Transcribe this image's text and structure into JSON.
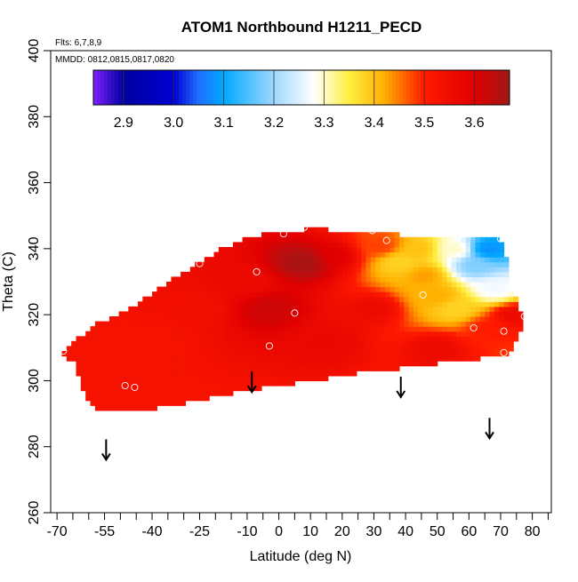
{
  "chart_data": {
    "type": "heatmap",
    "title": "ATOM1 Northbound H1211_PECD",
    "subtitle_flights": "Flts: 6,7,8,9",
    "subtitle_dates": "MMDD: 0812,0815,0817,0820",
    "xlabel": "Latitude (deg N)",
    "ylabel": "Theta (C)",
    "xlim": [
      -72,
      86
    ],
    "ylim": [
      260,
      400
    ],
    "x_major_ticks": [
      -70,
      -55,
      -40,
      -25,
      -10,
      0,
      10,
      20,
      30,
      40,
      50,
      60,
      70,
      80
    ],
    "x_tick_labels": [
      "-70",
      "-55",
      "-40",
      "-25",
      "-10",
      "0",
      "10",
      "20",
      "30",
      "40",
      "50",
      "60",
      "70",
      "80"
    ],
    "x_minor_ticks": [
      -65,
      -60,
      -50,
      -45,
      -35,
      -30,
      -20,
      -15,
      -5,
      5,
      15,
      25,
      35,
      45,
      55,
      65,
      75,
      85
    ],
    "y_ticks": [
      260,
      280,
      300,
      320,
      340,
      360,
      380,
      400
    ],
    "y_tick_labels": [
      "260",
      "280",
      "300",
      "320",
      "340",
      "360",
      "380",
      "400"
    ],
    "colorbar": {
      "min": 2.84,
      "max": 3.67,
      "ticks": [
        2.9,
        3.0,
        3.1,
        3.2,
        3.3,
        3.4,
        3.5,
        3.6
      ],
      "tick_labels": [
        "2.9",
        "3.0",
        "3.1",
        "3.2",
        "3.3",
        "3.4",
        "3.5",
        "3.6"
      ],
      "stops": [
        {
          "v": 2.84,
          "c": "#8020ff"
        },
        {
          "v": 2.9,
          "c": "#0000a0"
        },
        {
          "v": 3.0,
          "c": "#0000d0"
        },
        {
          "v": 3.05,
          "c": "#2070ff"
        },
        {
          "v": 3.1,
          "c": "#00a8ff"
        },
        {
          "v": 3.2,
          "c": "#a0d8ff"
        },
        {
          "v": 3.28,
          "c": "#ffffff"
        },
        {
          "v": 3.35,
          "c": "#ffee40"
        },
        {
          "v": 3.42,
          "c": "#ffb000"
        },
        {
          "v": 3.5,
          "c": "#ff1a00"
        },
        {
          "v": 3.6,
          "c": "#e00000"
        },
        {
          "v": 3.67,
          "c": "#a01818"
        }
      ]
    },
    "field_region": [
      [
        -68.5,
        309
      ],
      [
        -63,
        313
      ],
      [
        -58,
        317
      ],
      [
        -48,
        321
      ],
      [
        -38,
        328
      ],
      [
        -28,
        334
      ],
      [
        -18,
        340
      ],
      [
        -8,
        344
      ],
      [
        0,
        345
      ],
      [
        10,
        346
      ],
      [
        20,
        345.5
      ],
      [
        30,
        345.5
      ],
      [
        40,
        344
      ],
      [
        50,
        344
      ],
      [
        60,
        344
      ],
      [
        70,
        343
      ],
      [
        71.5,
        341
      ],
      [
        72.5,
        330
      ],
      [
        74,
        327
      ],
      [
        75.5,
        324
      ],
      [
        76.5,
        321
      ],
      [
        77.5,
        318
      ],
      [
        76,
        315
      ],
      [
        74,
        311
      ],
      [
        72.5,
        307.5
      ],
      [
        60,
        306.5
      ],
      [
        40,
        304
      ],
      [
        30,
        303
      ],
      [
        20,
        301.5
      ],
      [
        10,
        300
      ],
      [
        0,
        298.5
      ],
      [
        -10,
        297
      ],
      [
        -20,
        295
      ],
      [
        -30,
        293
      ],
      [
        -40,
        291.5
      ],
      [
        -50,
        290.5
      ],
      [
        -57,
        290.5
      ],
      [
        -60,
        293
      ],
      [
        -61.5,
        296
      ],
      [
        -62.5,
        300
      ],
      [
        -65,
        306
      ],
      [
        -68.5,
        307
      ]
    ],
    "field_kernels": [
      {
        "x": -55,
        "y": 300,
        "v": 3.53,
        "w": 5
      },
      {
        "x": -40,
        "y": 312,
        "v": 3.53,
        "w": 4
      },
      {
        "x": -25,
        "y": 322,
        "v": 3.54,
        "w": 4
      },
      {
        "x": -10,
        "y": 330,
        "v": 3.56,
        "w": 4
      },
      {
        "x": -3,
        "y": 322,
        "v": 3.62,
        "w": 5
      },
      {
        "x": 8,
        "y": 336,
        "v": 3.66,
        "w": 5
      },
      {
        "x": 15,
        "y": 312,
        "v": 3.57,
        "w": 4
      },
      {
        "x": 18,
        "y": 338,
        "v": 3.6,
        "w": 4
      },
      {
        "x": 30,
        "y": 322,
        "v": 3.56,
        "w": 4
      },
      {
        "x": 32,
        "y": 341,
        "v": 3.48,
        "w": 6
      },
      {
        "x": 38,
        "y": 336,
        "v": 3.38,
        "w": 6
      },
      {
        "x": 44,
        "y": 340,
        "v": 3.4,
        "w": 5
      },
      {
        "x": 46,
        "y": 332,
        "v": 3.43,
        "w": 5
      },
      {
        "x": 50,
        "y": 326,
        "v": 3.42,
        "w": 6
      },
      {
        "x": 50,
        "y": 310,
        "v": 3.56,
        "w": 4
      },
      {
        "x": 56,
        "y": 340,
        "v": 3.3,
        "w": 6
      },
      {
        "x": 56,
        "y": 322,
        "v": 3.38,
        "w": 6
      },
      {
        "x": 62,
        "y": 335,
        "v": 3.18,
        "w": 7
      },
      {
        "x": 66,
        "y": 340,
        "v": 3.08,
        "w": 8
      },
      {
        "x": 68,
        "y": 328,
        "v": 3.27,
        "w": 6
      },
      {
        "x": 66,
        "y": 316,
        "v": 3.5,
        "w": 5
      },
      {
        "x": 74,
        "y": 320,
        "v": 3.56,
        "w": 4
      }
    ],
    "observation_points": [
      {
        "lat": -68,
        "theta": 309
      },
      {
        "lat": -48.5,
        "theta": 298.5
      },
      {
        "lat": -45.5,
        "theta": 298
      },
      {
        "lat": -25,
        "theta": 335.5
      },
      {
        "lat": -7,
        "theta": 333
      },
      {
        "lat": -3,
        "theta": 310.5
      },
      {
        "lat": 1.5,
        "theta": 344.5
      },
      {
        "lat": 5,
        "theta": 320.5
      },
      {
        "lat": 8,
        "theta": 346.5
      },
      {
        "lat": 29.5,
        "theta": 345.5
      },
      {
        "lat": 34,
        "theta": 342.5
      },
      {
        "lat": 45.5,
        "theta": 326
      },
      {
        "lat": 61.5,
        "theta": 316
      },
      {
        "lat": 70,
        "theta": 343
      },
      {
        "lat": 71,
        "theta": 315
      },
      {
        "lat": 71,
        "theta": 308.5
      },
      {
        "lat": 77.5,
        "theta": 319.5
      }
    ],
    "flight_arrows": [
      {
        "lat": -54.5,
        "theta": 279
      },
      {
        "lat": -8.5,
        "theta": 299.5
      },
      {
        "lat": 38.5,
        "theta": 298
      },
      {
        "lat": 66.5,
        "theta": 285.5
      }
    ]
  }
}
